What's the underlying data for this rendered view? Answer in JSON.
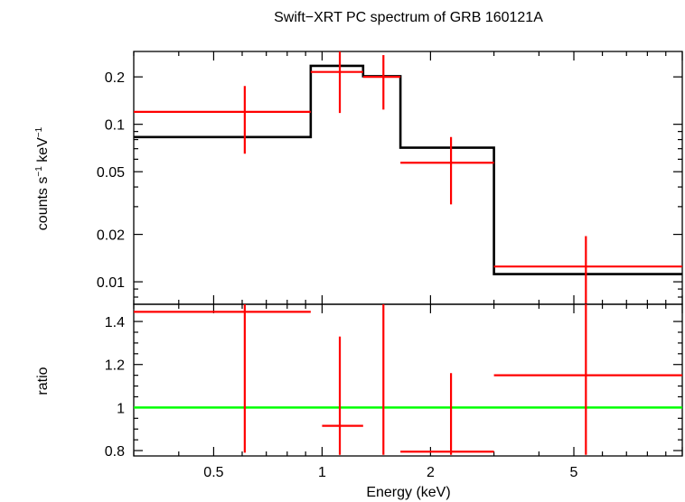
{
  "title": "Swift−XRT PC spectrum of GRB 160121A",
  "colors": {
    "data": "#ff0000",
    "model": "#000000",
    "ratio_line": "#00ff00",
    "frame": "#000000"
  },
  "chart_data": [
    {
      "type": "line",
      "panel": "spectrum",
      "ylabel": "counts s⁻¹ keV⁻¹",
      "ylabel_parts": {
        "base": "counts s",
        "exp1": "−1",
        "mid": " keV",
        "exp2": "−1"
      },
      "x_scale": "log",
      "y_scale": "log",
      "xlim": [
        0.3,
        10
      ],
      "ylim": [
        0.0072,
        0.29
      ],
      "yticks": [
        {
          "value": 0.2,
          "label": "0.2"
        },
        {
          "value": 0.1,
          "label": "0.1"
        },
        {
          "value": 0.05,
          "label": "0.05"
        },
        {
          "value": 0.02,
          "label": "0.02"
        },
        {
          "value": 0.01,
          "label": "0.01"
        }
      ],
      "series": [
        {
          "kind": "data",
          "points": [
            {
              "x_lo": 0.3,
              "x_hi": 0.93,
              "x": 0.61,
              "y": 0.12,
              "y_lo": 0.065,
              "y_hi": 0.175
            },
            {
              "x_lo": 0.93,
              "x_hi": 1.3,
              "x": 1.12,
              "y": 0.215,
              "y_lo": 0.118,
              "y_hi": 0.29
            },
            {
              "x_lo": 1.3,
              "x_hi": 1.65,
              "x": 1.48,
              "y": 0.2,
              "y_lo": 0.124,
              "y_hi": 0.275
            },
            {
              "x_lo": 1.65,
              "x_hi": 3.0,
              "x": 2.28,
              "y": 0.057,
              "y_lo": 0.031,
              "y_hi": 0.083
            },
            {
              "x_lo": 3.0,
              "x_hi": 10.0,
              "x": 5.4,
              "y": 0.0125,
              "y_lo": 0.0072,
              "y_hi": 0.0195
            }
          ]
        },
        {
          "kind": "model",
          "steps": [
            {
              "x_lo": 0.3,
              "x_hi": 0.93,
              "y": 0.083
            },
            {
              "x_lo": 0.93,
              "x_hi": 1.3,
              "y": 0.235
            },
            {
              "x_lo": 1.3,
              "x_hi": 1.65,
              "y": 0.202
            },
            {
              "x_lo": 1.65,
              "x_hi": 3.0,
              "y": 0.071
            },
            {
              "x_lo": 3.0,
              "x_hi": 10.0,
              "y": 0.0112
            }
          ]
        }
      ]
    },
    {
      "type": "scatter",
      "panel": "ratio",
      "xlabel": "Energy (keV)",
      "ylabel": "ratio",
      "x_scale": "log",
      "xlim": [
        0.3,
        10
      ],
      "ylim": [
        0.775,
        1.48
      ],
      "xticks": [
        {
          "value": 0.5,
          "label": "0.5"
        },
        {
          "value": 1,
          "label": "1"
        },
        {
          "value": 2,
          "label": "2"
        },
        {
          "value": 5,
          "label": "5"
        }
      ],
      "yticks": [
        {
          "value": 1.4,
          "label": "1.4"
        },
        {
          "value": 1.2,
          "label": "1.2"
        },
        {
          "value": 1.0,
          "label": "1"
        },
        {
          "value": 0.8,
          "label": "0.8"
        }
      ],
      "reference_line": 1.0,
      "points": [
        {
          "x_lo": 0.3,
          "x_hi": 0.93,
          "x": 0.61,
          "y": 1.445,
          "y_lo": 0.79,
          "y_hi": 1.48
        },
        {
          "x_lo": 1.0,
          "x_hi": 1.3,
          "x": 1.12,
          "y": 0.915,
          "y_lo": 0.78,
          "y_hi": 1.33
        },
        {
          "x_lo": 1.48,
          "x_hi": 1.48,
          "x": 1.48,
          "y": 1.1,
          "y_lo": 0.78,
          "y_hi": 1.48
        },
        {
          "x_lo": 1.65,
          "x_hi": 3.0,
          "x": 2.28,
          "y": 0.795,
          "y_lo": 0.78,
          "y_hi": 1.16
        },
        {
          "x_lo": 3.0,
          "x_hi": 10.0,
          "x": 5.4,
          "y": 1.15,
          "y_lo": 0.78,
          "y_hi": 1.48
        }
      ]
    }
  ]
}
